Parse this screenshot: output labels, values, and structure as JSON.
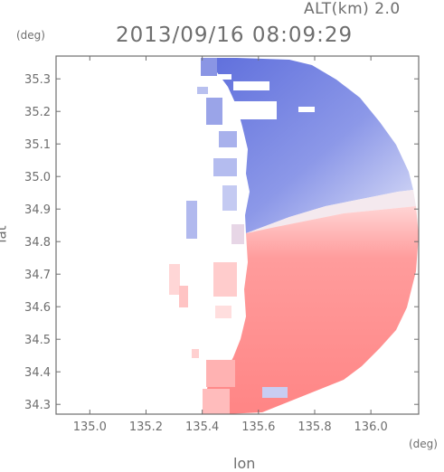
{
  "header": {
    "altitude_label": "ALT(km)  2.0",
    "timestamp": "2013/09/16 08:09:29"
  },
  "axes": {
    "y_unit": "(deg)",
    "x_unit": "(deg)",
    "y_title": "lat",
    "x_title": "lon",
    "x_ticks": [
      "135.0",
      "135.2",
      "135.4",
      "135.6",
      "135.8",
      "136.0"
    ],
    "y_ticks": [
      "35.3",
      "35.2",
      "35.1",
      "35.0",
      "34.9",
      "34.8",
      "34.7",
      "34.6",
      "34.5",
      "34.4",
      "34.3"
    ],
    "xlim": [
      134.88,
      136.17
    ],
    "ylim": [
      34.27,
      35.37
    ]
  },
  "map": {
    "type": "radar doppler velocity field",
    "radar_center": {
      "lon": 135.57,
      "lat": 34.82
    },
    "colors": {
      "approaching": "#6f7ee0",
      "receding": "#ff8a8a",
      "neutral": "#ffffff",
      "frame": "#6e6e6e"
    }
  }
}
